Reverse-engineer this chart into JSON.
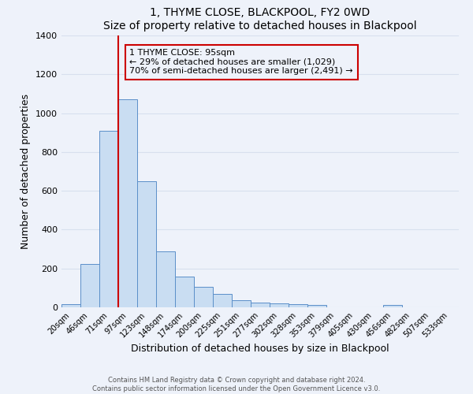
{
  "title": "1, THYME CLOSE, BLACKPOOL, FY2 0WD",
  "subtitle": "Size of property relative to detached houses in Blackpool",
  "xlabel": "Distribution of detached houses by size in Blackpool",
  "ylabel": "Number of detached properties",
  "bar_labels": [
    "20sqm",
    "46sqm",
    "71sqm",
    "97sqm",
    "123sqm",
    "148sqm",
    "174sqm",
    "200sqm",
    "225sqm",
    "251sqm",
    "277sqm",
    "302sqm",
    "328sqm",
    "353sqm",
    "379sqm",
    "405sqm",
    "430sqm",
    "456sqm",
    "482sqm",
    "507sqm",
    "533sqm"
  ],
  "bar_values": [
    15,
    225,
    910,
    1070,
    648,
    290,
    160,
    105,
    70,
    38,
    25,
    20,
    18,
    12,
    0,
    0,
    0,
    12,
    0,
    0,
    0
  ],
  "bar_color": "#c9ddf2",
  "bar_edge_color": "#5b8fc9",
  "vline_color": "#cc0000",
  "annotation_title": "1 THYME CLOSE: 95sqm",
  "annotation_line1": "← 29% of detached houses are smaller (1,029)",
  "annotation_line2": "70% of semi-detached houses are larger (2,491) →",
  "annotation_box_edge": "#cc0000",
  "ylim": [
    0,
    1400
  ],
  "yticks": [
    0,
    200,
    400,
    600,
    800,
    1000,
    1200,
    1400
  ],
  "footnote1": "Contains HM Land Registry data © Crown copyright and database right 2024.",
  "footnote2": "Contains public sector information licensed under the Open Government Licence v3.0.",
  "background_color": "#eef2fa",
  "grid_color": "#d8e0ee"
}
